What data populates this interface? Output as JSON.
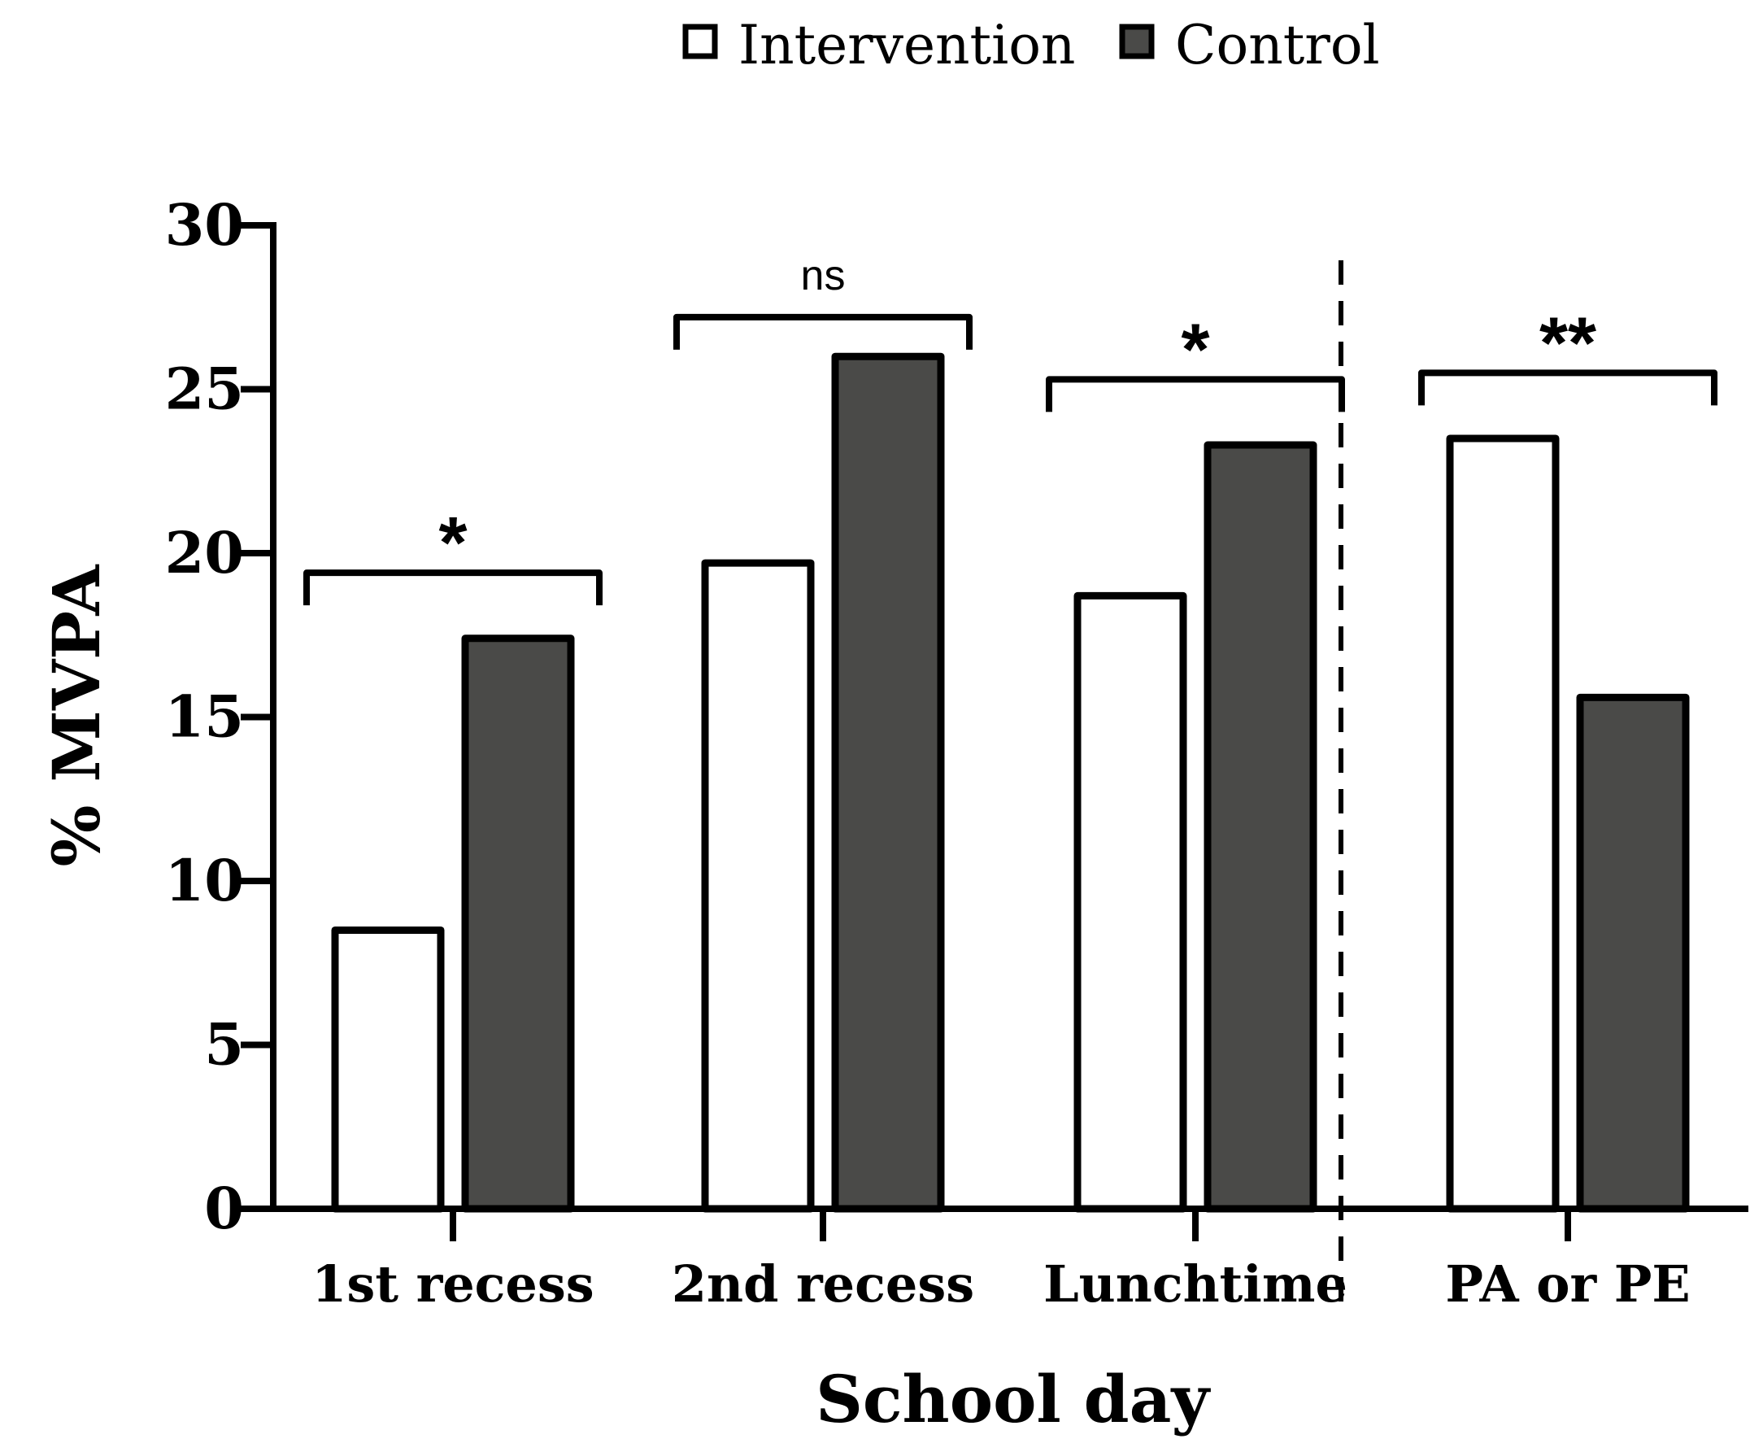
{
  "chart_data": {
    "type": "bar",
    "xlabel": "School day",
    "ylabel": "% MVPA",
    "ylim": [
      0,
      30
    ],
    "yticks": [
      0,
      5,
      10,
      15,
      20,
      25,
      30
    ],
    "categories": [
      "1st recess",
      "2nd recess",
      "Lunchtime",
      "PA or PE"
    ],
    "series": [
      {
        "name": "Intervention",
        "color": "#ffffff",
        "values": [
          8.5,
          19.7,
          18.7,
          23.5
        ]
      },
      {
        "name": "Control",
        "color": "#4a4a48",
        "values": [
          17.4,
          26.0,
          23.3,
          15.6
        ]
      }
    ],
    "significance": [
      {
        "category": "1st recess",
        "label": "*",
        "level": 19.4
      },
      {
        "category": "2nd recess",
        "label": "ns",
        "level": 27.2
      },
      {
        "category": "Lunchtime",
        "label": "*",
        "level": 25.3
      },
      {
        "category": "PA or PE",
        "label": "**",
        "level": 25.5
      }
    ],
    "divider_after_category": "Lunchtime",
    "legend": {
      "position": "top-center"
    }
  }
}
